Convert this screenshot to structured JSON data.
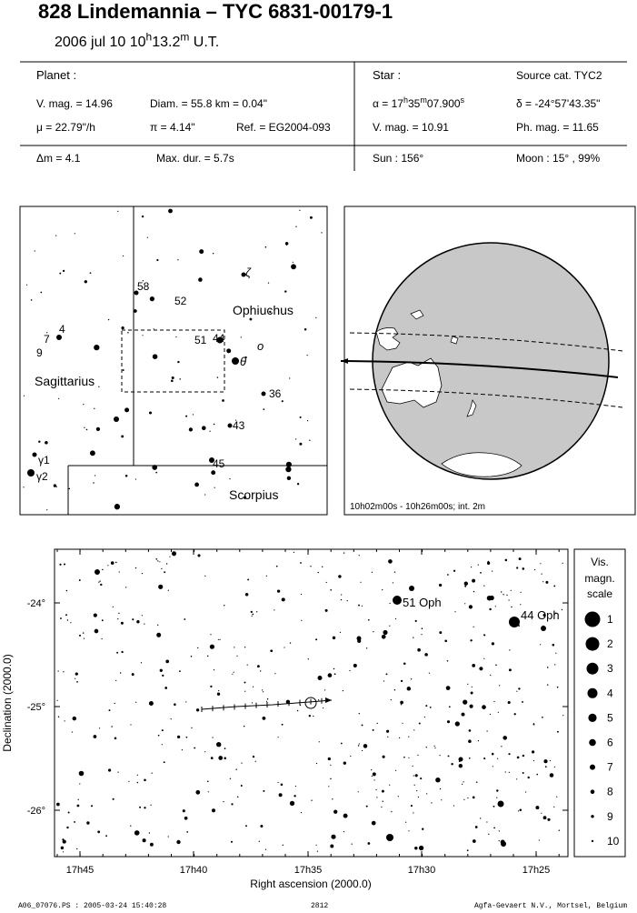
{
  "header": {
    "title": "828 Lindemannia  –  TYC 6831-00179-1",
    "datetime": [
      "2006 jul 10  10",
      "h",
      "13.2",
      "m",
      " U.T."
    ]
  },
  "planet": {
    "label": "Planet :",
    "vmag": "V. mag. = 14.96",
    "diam": "Diam. = 55.8 km = 0.04\"",
    "mu": "μ =  22.79\"/h",
    "pi": "π = 4.14\"",
    "ref": "Ref. = EG2004-093",
    "dmag": "Δm = 4.1",
    "maxdur": "Max. dur. = 5.7s"
  },
  "star": {
    "label": "Star :",
    "source": "Source cat.  TYC2",
    "alpha": [
      "α = 17",
      "h",
      "35",
      "m",
      "07.900",
      "s"
    ],
    "delta": "δ = -24°57'43.35\"",
    "vmag": "V. mag. = 10.91",
    "phmag": "Ph. mag. = 11.65",
    "sun": "Sun : 156°",
    "moon": "Moon :  15° , 99%"
  },
  "finder": {
    "labels": [
      "58",
      "52",
      "Ophiuchus",
      "51",
      "44",
      "ο",
      "θ",
      "ζ",
      "7",
      "4",
      "9",
      "Sagittarius",
      "36",
      "43",
      "45",
      "γ1",
      "γ2",
      "Scorpius"
    ]
  },
  "globe": {
    "caption": "10h02m00s - 10h26m00s; int.  2m"
  },
  "chart": {
    "ylabels": [
      "-24°",
      "-25°",
      "-26°"
    ],
    "xlabels": [
      "17h45",
      "17h40",
      "17h35",
      "17h30",
      "17h25"
    ],
    "xtitle": "Right ascension (2000.0)",
    "ytitle": "Declination (2000.0)",
    "stars": [
      "51 Oph",
      "44 Oph"
    ],
    "scale_title": [
      "Vis.",
      "magn.",
      "scale"
    ],
    "scale": [
      1,
      2,
      3,
      4,
      5,
      6,
      7,
      8,
      9,
      10
    ]
  },
  "footer": {
    "file": "A06_07076.PS : 2005-03-24 15:40:28",
    "number": "2812",
    "credit": "Agfa-Gevaert N.V., Mortsel, Belgium"
  }
}
